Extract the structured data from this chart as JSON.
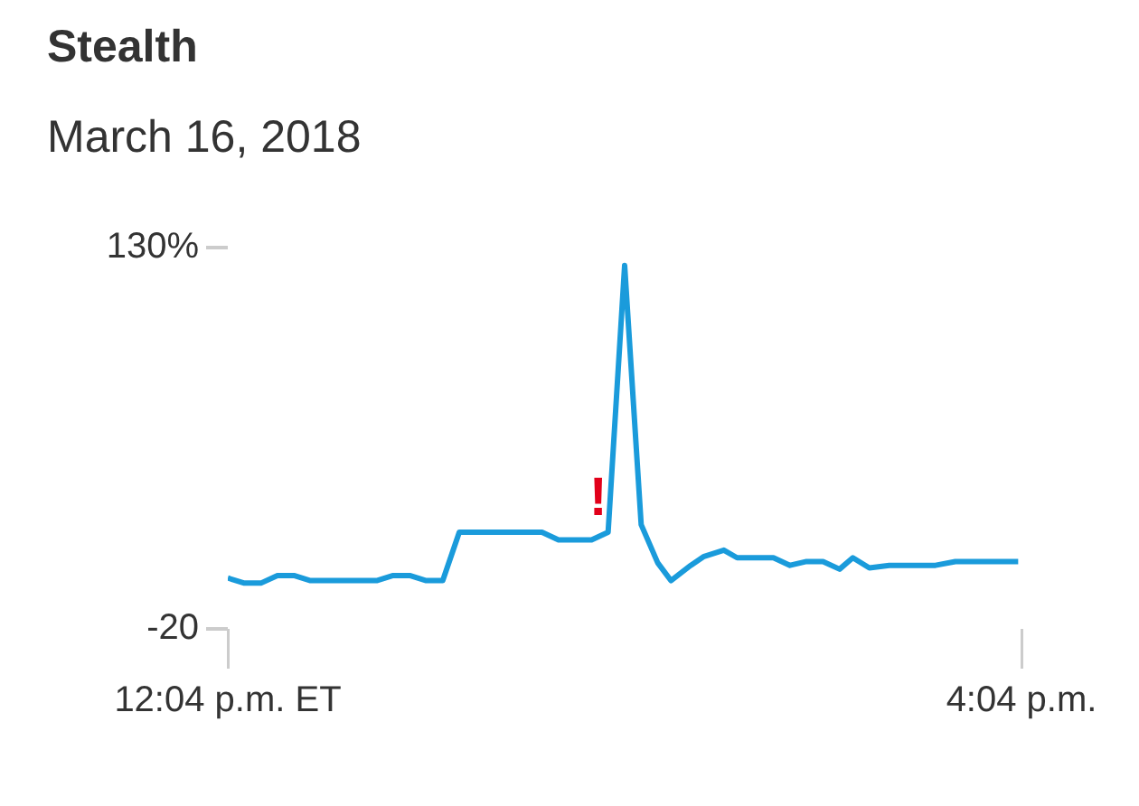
{
  "chart_data": {
    "type": "line",
    "title": "Stealth",
    "subtitle": "March 16, 2018",
    "x": [
      "2018-03-16T12:04",
      "2018-03-16T12:09",
      "2018-03-16T12:14",
      "2018-03-16T12:19",
      "2018-03-16T12:24",
      "2018-03-16T12:29",
      "2018-03-16T12:49",
      "2018-03-16T12:54",
      "2018-03-16T12:59",
      "2018-03-16T13:04",
      "2018-03-16T13:09",
      "2018-03-16T13:14",
      "2018-03-16T13:39",
      "2018-03-16T13:44",
      "2018-03-16T13:54",
      "2018-03-16T13:59",
      "2018-03-16T14:04",
      "2018-03-16T14:09",
      "2018-03-16T14:14",
      "2018-03-16T14:18",
      "2018-03-16T14:24",
      "2018-03-16T14:28",
      "2018-03-16T14:34",
      "2018-03-16T14:38",
      "2018-03-16T14:49",
      "2018-03-16T14:54",
      "2018-03-16T14:59",
      "2018-03-16T15:04",
      "2018-03-16T15:09",
      "2018-03-16T15:13",
      "2018-03-16T15:18",
      "2018-03-16T15:24",
      "2018-03-16T15:38",
      "2018-03-16T15:44",
      "2018-03-16T16:03"
    ],
    "series": [
      {
        "color": "#1a9bdb",
        "values": [
          0,
          -2,
          -2,
          1,
          1,
          -1,
          -1,
          1,
          1,
          -1,
          -1,
          18,
          18,
          15,
          15,
          18,
          123,
          21,
          6,
          -1,
          5,
          8.5,
          11,
          8,
          8,
          5,
          6.5,
          6.5,
          3.5,
          8,
          4,
          5,
          5,
          6.5,
          6.5
        ]
      }
    ],
    "xlim": [
      "2018-03-16T12:04",
      "2018-03-16T16:04"
    ],
    "xticks": [
      {
        "value": "2018-03-16T12:04",
        "label": "12:04 p.m. ET"
      },
      {
        "value": "2018-03-16T16:04",
        "label": "4:04 p.m."
      }
    ],
    "ylim": [
      -20,
      130
    ],
    "yticks": [
      {
        "value": -20,
        "label": "-20"
      },
      {
        "value": 130,
        "label": "130%"
      }
    ],
    "annotations": [
      {
        "text": "!",
        "x": "2018-03-16T13:56",
        "y": 20
      }
    ],
    "grid": false,
    "legend": false,
    "marker": "none",
    "line_style": "solid"
  }
}
